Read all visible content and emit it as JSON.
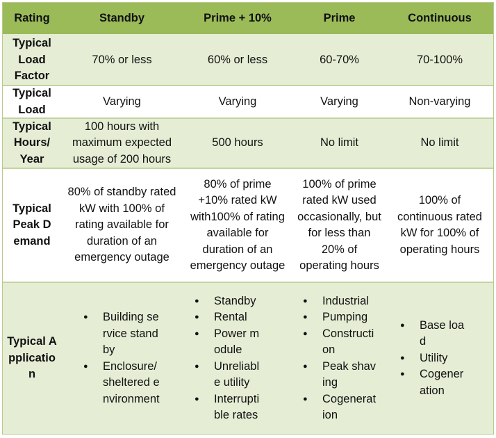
{
  "table": {
    "headers": [
      "Rating",
      "Standby",
      "Prime + 10%",
      "Prime",
      "Continuous"
    ],
    "rows": [
      {
        "label": "Typical Load Factor",
        "cells": [
          "70% or less",
          "60% or less",
          "60-70%",
          "70-100%"
        ]
      },
      {
        "label": "Typical Load",
        "cells": [
          "Varying",
          "Varying",
          "Varying",
          "Non-varying"
        ]
      },
      {
        "label": "Typical Hours/ Year",
        "cells": [
          "100 hours with maximum expected usage of 200 hours",
          "500 hours",
          "No limit",
          "No limit"
        ]
      },
      {
        "label": "Typical Peak Demand",
        "cells": [
          "80% of standby rated kW with 100% of rating available for duration of an emergency outage",
          "80% of prime +10% rated kW with100% of rating available for duration of an emergency outage",
          "100% of prime rated kW used occasionally, but for less than 20% of operating hours",
          "100% of continuous rated kW for 100% of operating hours"
        ]
      },
      {
        "label": "Typical Application",
        "lists": [
          [
            "Building service standby",
            "Enclosure/sheltered environment"
          ],
          [
            "Standby",
            "Rental",
            "Power module",
            "Unreliable utility",
            "Interruptible rates"
          ],
          [
            "Industrial",
            "Pumping",
            "Construction",
            "Peak shaving",
            "Cogeneration"
          ],
          [
            "Base load",
            "Utility",
            "Cogeneration"
          ]
        ]
      }
    ]
  },
  "colors": {
    "header_bg": "#9bbb59",
    "alt_row_bg": "#e5edd5",
    "white_row_bg": "#ffffff",
    "border": "#c3d3a0"
  }
}
